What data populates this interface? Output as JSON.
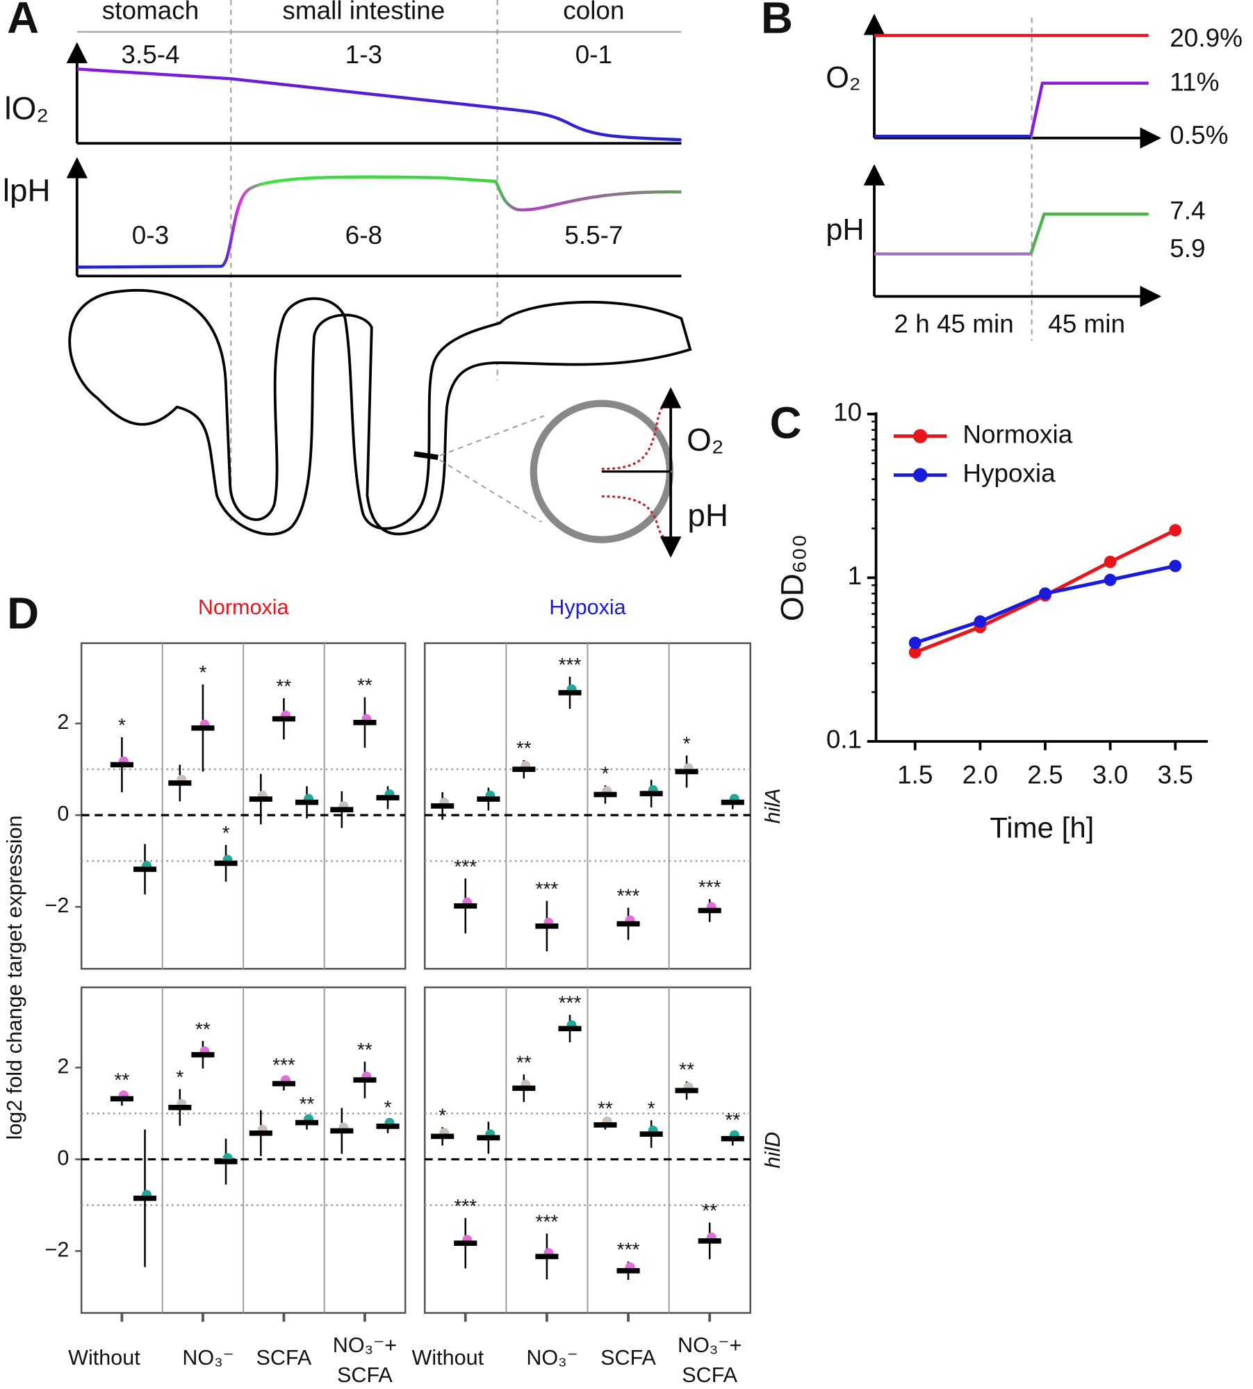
{
  "diagram_a": {
    "label": "A",
    "regions": [
      "stomach",
      "small intestine",
      "colon"
    ],
    "o2_label": "lO₂",
    "o2_ranges": [
      "3.5-4",
      "1-3",
      "0-1"
    ],
    "ph_label": "lpH",
    "ph_ranges": [
      "0-3",
      "6-8",
      "5.5-7"
    ],
    "section_labels": [
      "O₂",
      "pH"
    ]
  },
  "diagram_b": {
    "label": "B",
    "o2_label": "O₂",
    "o2_levels": [
      "20.9%",
      "11%",
      "0.5%"
    ],
    "ph_label": "pH",
    "ph_levels": [
      "7.4",
      "5.9"
    ],
    "phases": [
      "2 h 45 min",
      "45 min"
    ]
  },
  "chart_data": [
    {
      "type": "line",
      "label": "C",
      "x_label": "Time [h]",
      "y_label": "OD₆₀₀",
      "x": [
        1.5,
        2,
        2.5,
        3,
        3.5
      ],
      "series": [
        {
          "name": "Normoxia",
          "color": "#e8161b",
          "values": [
            0.35,
            0.5,
            0.78,
            1.25,
            1.95
          ]
        },
        {
          "name": "Hypoxia",
          "color": "#1a1adb",
          "values": [
            0.4,
            0.54,
            0.8,
            0.97,
            1.18
          ]
        }
      ],
      "xlim": [
        1.2,
        3.75
      ],
      "xticks": [
        1.5,
        {
          "value": 2,
          "label": "2.0"
        },
        2.5,
        {
          "value": 3,
          "label": "3.0"
        },
        3.5
      ],
      "ylim": [
        0.1,
        10
      ],
      "yticks": [
        0.1,
        1,
        10
      ],
      "log_y": true,
      "legend": "top-left"
    },
    {
      "type": "dotplot",
      "label": "D",
      "y_label": "log2 fold change target expression",
      "column_titles": [
        "Normoxia",
        "Hypoxia"
      ],
      "column_title_colors": [
        "#e8161b",
        "#1a1adb"
      ],
      "row_labels": [
        "hilA",
        "hilD"
      ],
      "categories": [
        [
          "Without"
        ],
        [
          "NO₃⁻"
        ],
        [
          "SCFA"
        ],
        [
          "NO₃⁻+",
          "SCFA"
        ]
      ],
      "ylim": [
        -3.35,
        3.75
      ],
      "yticks": [
        {
          "value": -2,
          "label": "−2"
        },
        0,
        2
      ],
      "hlines": [
        {
          "value": 0,
          "style": "dashed"
        },
        {
          "value": 1,
          "style": "dotted"
        },
        {
          "value": -1,
          "style": "dotted"
        }
      ],
      "facets": [
        [
          {
            "series": [
              {
                "color": "#c8c0b8",
                "values": [
                  null,
                  0.7,
                  0.35,
                  0.12
                ],
                "errors": [
                  null,
                  0.4,
                  0.55,
                  0.4
                ],
                "annotations": [
                  null,
                  null,
                  null,
                  null
                ]
              },
              {
                "color": "#e070d8",
                "values": [
                  1.1,
                  1.9,
                  2.1,
                  2.02
                ],
                "errors": [
                  0.6,
                  0.95,
                  0.45,
                  0.55
                ],
                "annotations": [
                  "*",
                  "*",
                  "**",
                  "**"
                ]
              },
              {
                "color": "#20a89a",
                "values": [
                  -1.18,
                  -1.05,
                  0.28,
                  0.38
                ],
                "errors": [
                  0.55,
                  0.4,
                  0.35,
                  0.25
                ],
                "annotations": [
                  null,
                  "*",
                  null,
                  null
                ]
              }
            ]
          },
          {
            "series": [
              {
                "color": "#c8c0b8",
                "values": [
                  0.2,
                  1.0,
                  0.45,
                  0.95
                ],
                "errors": [
                  0.3,
                  0.2,
                  0.2,
                  0.35
                ],
                "annotations": [
                  null,
                  "**",
                  "*",
                  "*"
                ]
              },
              {
                "color": "#e070d8",
                "values": [
                  -1.98,
                  -2.42,
                  -2.37,
                  -2.08
                ],
                "errors": [
                  0.6,
                  0.55,
                  0.35,
                  0.25
                ],
                "annotations": [
                  "***",
                  "***",
                  "***",
                  "***"
                ]
              },
              {
                "color": "#20a89a",
                "values": [
                  0.35,
                  2.67,
                  0.47,
                  0.28
                ],
                "errors": [
                  0.25,
                  0.35,
                  0.3,
                  0.15
                ],
                "annotations": [
                  null,
                  "***",
                  null,
                  null
                ]
              }
            ]
          }
        ],
        [
          {
            "series": [
              {
                "color": "#c8c0b8",
                "values": [
                  null,
                  1.13,
                  0.57,
                  0.62
                ],
                "errors": [
                  null,
                  0.4,
                  0.5,
                  0.5
                ],
                "annotations": [
                  null,
                  "*",
                  null,
                  null
                ]
              },
              {
                "color": "#e070d8",
                "values": [
                  1.32,
                  2.28,
                  1.65,
                  1.73
                ],
                "errors": [
                  0.15,
                  0.3,
                  0.15,
                  0.4
                ],
                "annotations": [
                  "**",
                  "**",
                  "***",
                  "**"
                ]
              },
              {
                "color": "#20a89a",
                "values": [
                  -0.85,
                  -0.05,
                  0.8,
                  0.72
                ],
                "errors": [
                  1.5,
                  0.5,
                  0.15,
                  0.15
                ],
                "annotations": [
                  null,
                  null,
                  "**",
                  "*"
                ]
              }
            ]
          },
          {
            "series": [
              {
                "color": "#c8c0b8",
                "values": [
                  0.5,
                  1.55,
                  0.75,
                  1.5
                ],
                "errors": [
                  0.2,
                  0.3,
                  0.1,
                  0.2
                ],
                "annotations": [
                  "*",
                  "**",
                  "**",
                  "**"
                ]
              },
              {
                "color": "#e070d8",
                "values": [
                  -1.83,
                  -2.12,
                  -2.43,
                  -1.78
                ],
                "errors": [
                  0.55,
                  0.5,
                  0.2,
                  0.4
                ],
                "annotations": [
                  "***",
                  "***",
                  "***",
                  "**"
                ]
              },
              {
                "color": "#20a89a",
                "values": [
                  0.47,
                  2.85,
                  0.55,
                  0.45
                ],
                "errors": [
                  0.35,
                  0.3,
                  0.3,
                  0.15
                ],
                "annotations": [
                  null,
                  "***",
                  "*",
                  "**"
                ]
              }
            ]
          }
        ]
      ]
    }
  ]
}
